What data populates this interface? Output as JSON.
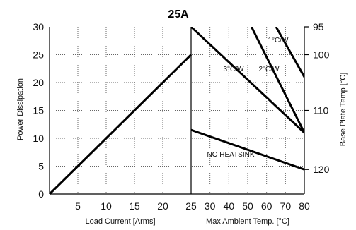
{
  "chart_data": {
    "type": "line",
    "title": "25A",
    "left_panel": {
      "xlabel": "Load Current  [Arms]",
      "x_range": [
        0,
        25
      ],
      "x_ticks": [
        "5",
        "10",
        "15",
        "20",
        "25"
      ],
      "series": [
        {
          "x": [
            0,
            25
          ],
          "y": [
            0,
            25
          ]
        }
      ]
    },
    "right_panel": {
      "xlabel": "Max Ambient Temp. [°C]",
      "x_range": [
        20,
        80
      ],
      "x_ticks": [
        "30",
        "40",
        "50",
        "60",
        "70",
        "80"
      ],
      "series": [
        {
          "name": "3°C/W",
          "x": [
            20,
            80
          ],
          "y": [
            30,
            11
          ]
        },
        {
          "name": "2°C/W",
          "x": [
            52,
            80
          ],
          "y": [
            30,
            11
          ]
        },
        {
          "name": "1°C/W",
          "x": [
            65,
            80
          ],
          "y": [
            30,
            21
          ]
        },
        {
          "name": "NO HEATSINK",
          "x": [
            20,
            80
          ],
          "y": [
            11.5,
            4.4
          ]
        }
      ],
      "annotations": [
        "3°C/W",
        "2°C/W",
        "1°C/W",
        "NO HEATSINK"
      ]
    },
    "ylabel_left": "Power Dissipation",
    "y_range": [
      0,
      30
    ],
    "y_ticks": [
      "0",
      "5",
      "10",
      "15",
      "20",
      "25",
      "30"
    ],
    "ylabel_right": "Base Plate Temp [°C]",
    "y_right_ticks": [
      {
        "label": "95",
        "at": 30
      },
      {
        "label": "100",
        "at": 25
      },
      {
        "label": "110",
        "at": 15
      },
      {
        "label": "120",
        "at": 4.4
      }
    ],
    "grid": true
  }
}
